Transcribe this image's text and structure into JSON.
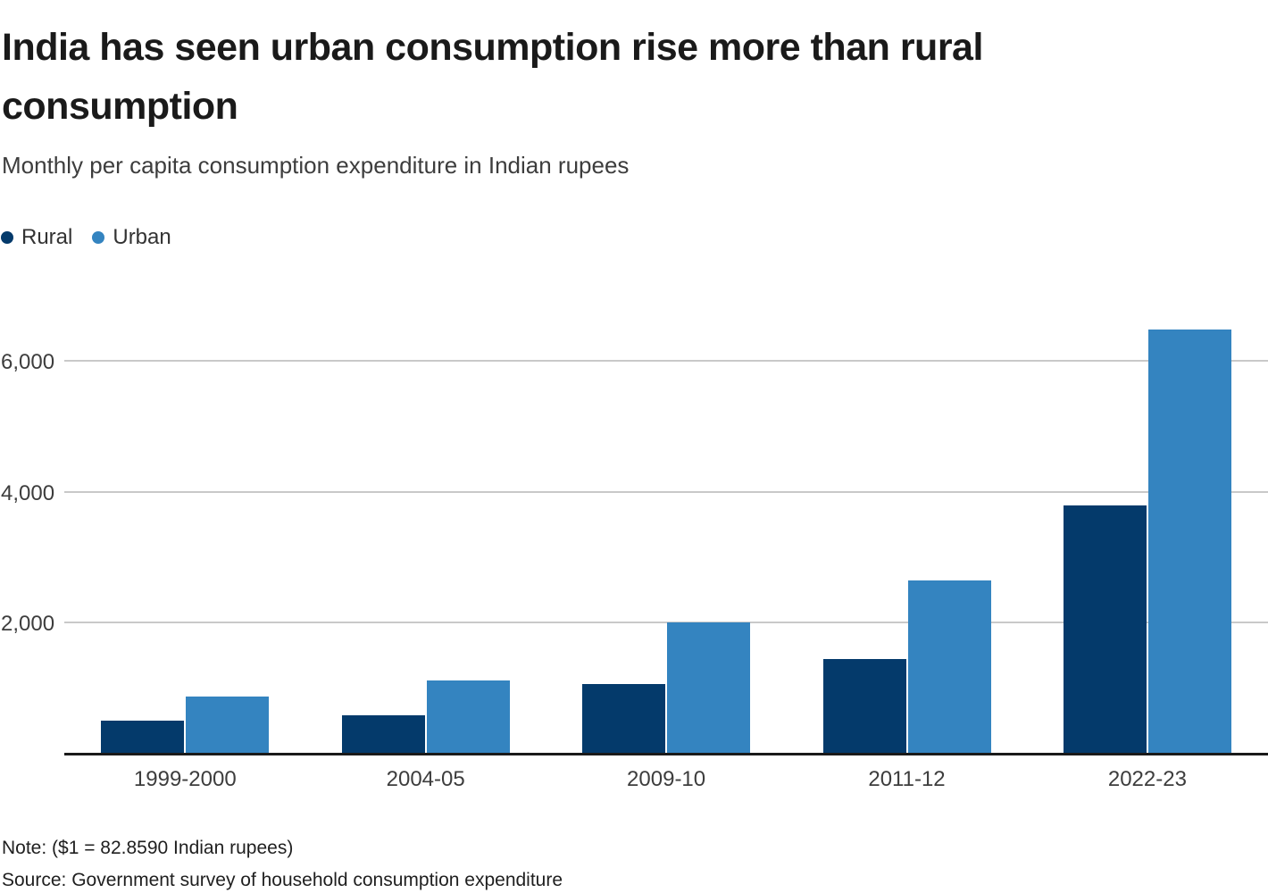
{
  "header": {
    "title_lines": [
      "India has seen urban consumption rise more than rural",
      "consumption"
    ],
    "subtitle": "Monthly per capita consumption expenditure in Indian rupees"
  },
  "chart_data": {
    "type": "bar",
    "title": "India has seen urban consumption rise more than rural consumption",
    "subtitle": "Monthly per capita consumption expenditure in Indian rupees",
    "categories": [
      "1999-2000",
      "2004-05",
      "2009-10",
      "2011-12",
      "2022-23"
    ],
    "series": [
      {
        "name": "Rural",
        "color": "#043a6b",
        "values": [
          486,
          579,
          1054,
          1430,
          3773
        ]
      },
      {
        "name": "Urban",
        "color": "#3484c0",
        "values": [
          855,
          1105,
          1984,
          2630,
          6459
        ]
      }
    ],
    "yticks": [
      {
        "value": 2000,
        "label": "2,000"
      },
      {
        "value": 4000,
        "label": "4,000"
      },
      {
        "value": 6000,
        "label": "6,000"
      }
    ],
    "ylim": [
      0,
      6500
    ],
    "grid": "horizontal",
    "legend_position": "top-left",
    "colors": {
      "gridline": "#c9c9c9",
      "axis_line": "#1a1a1a",
      "tick_text": "#3d3d3d"
    }
  },
  "footer": {
    "note": "Note: ($1 = 82.8590 Indian rupees)",
    "source": "Source: Government survey of household consumption expenditure"
  }
}
